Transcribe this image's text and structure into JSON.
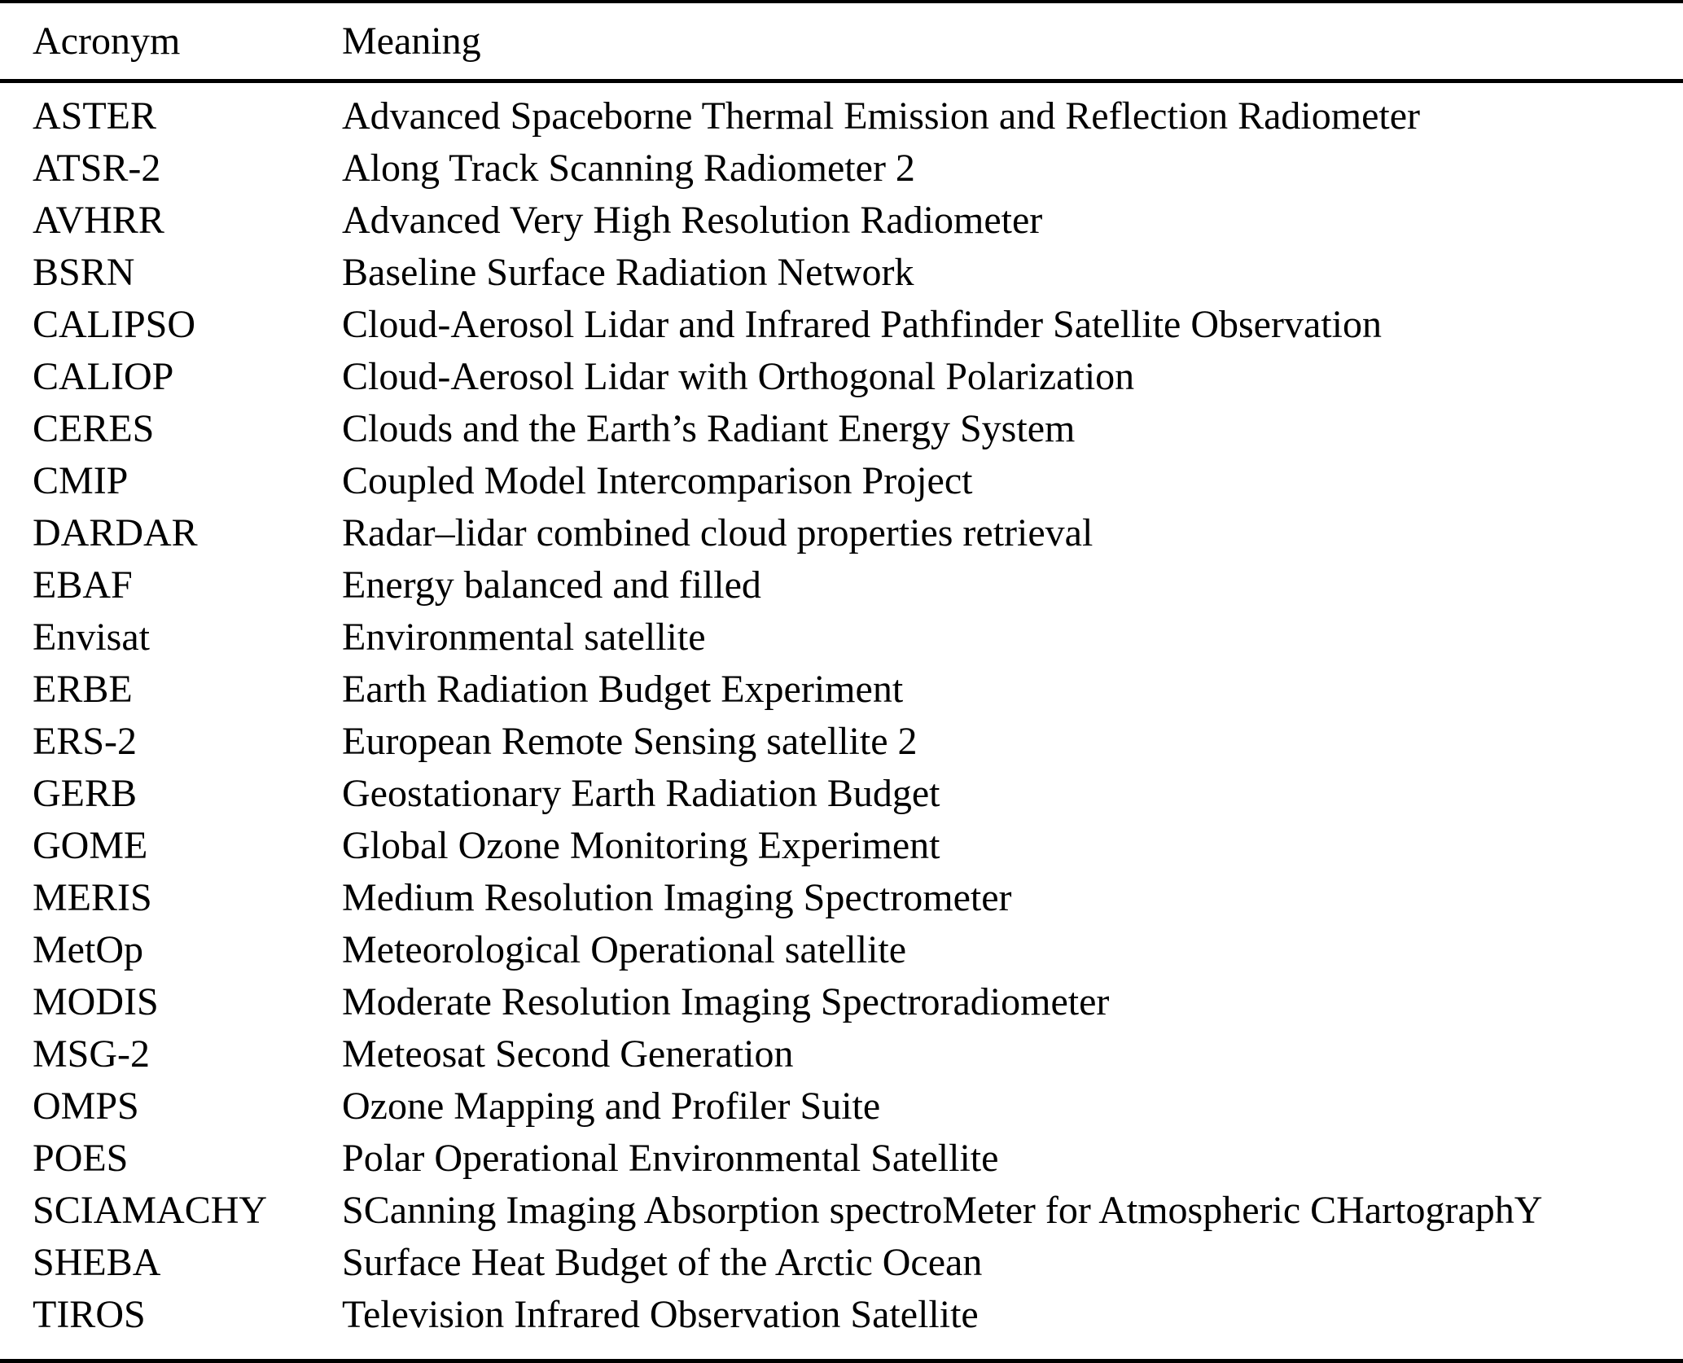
{
  "table": {
    "columns": [
      {
        "label": "Acronym"
      },
      {
        "label": "Meaning"
      }
    ],
    "rows": [
      {
        "acronym": "ASTER",
        "meaning": "Advanced Spaceborne Thermal Emission and Reflection Radiometer"
      },
      {
        "acronym": "ATSR-2",
        "meaning": "Along Track Scanning Radiometer 2"
      },
      {
        "acronym": "AVHRR",
        "meaning": "Advanced Very High Resolution Radiometer"
      },
      {
        "acronym": "BSRN",
        "meaning": "Baseline Surface Radiation Network"
      },
      {
        "acronym": "CALIPSO",
        "meaning": "Cloud-Aerosol Lidar and Infrared Pathfinder Satellite Observation"
      },
      {
        "acronym": "CALIOP",
        "meaning": "Cloud-Aerosol Lidar with Orthogonal Polarization"
      },
      {
        "acronym": "CERES",
        "meaning": "Clouds and the Earth’s Radiant Energy System"
      },
      {
        "acronym": "CMIP",
        "meaning": "Coupled Model Intercomparison Project"
      },
      {
        "acronym": "DARDAR",
        "meaning": "Radar–lidar combined cloud properties retrieval"
      },
      {
        "acronym": "EBAF",
        "meaning": "Energy balanced and filled"
      },
      {
        "acronym": "Envisat",
        "meaning": "Environmental satellite"
      },
      {
        "acronym": "ERBE",
        "meaning": "Earth Radiation Budget Experiment"
      },
      {
        "acronym": "ERS-2",
        "meaning": "European Remote Sensing satellite 2"
      },
      {
        "acronym": "GERB",
        "meaning": "Geostationary Earth Radiation Budget"
      },
      {
        "acronym": "GOME",
        "meaning": "Global Ozone Monitoring Experiment"
      },
      {
        "acronym": "MERIS",
        "meaning": "Medium Resolution Imaging Spectrometer"
      },
      {
        "acronym": "MetOp",
        "meaning": "Meteorological Operational satellite"
      },
      {
        "acronym": "MODIS",
        "meaning": "Moderate Resolution Imaging Spectroradiometer"
      },
      {
        "acronym": "MSG-2",
        "meaning": "Meteosat Second Generation"
      },
      {
        "acronym": "OMPS",
        "meaning": "Ozone Mapping and Profiler Suite"
      },
      {
        "acronym": "POES",
        "meaning": "Polar Operational Environmental Satellite"
      },
      {
        "acronym": "SCIAMACHY",
        "meaning": "SCanning Imaging Absorption spectroMeter for Atmospheric CHartographY"
      },
      {
        "acronym": "SHEBA",
        "meaning": "Surface Heat Budget of the Arctic Ocean"
      },
      {
        "acronym": "TIROS",
        "meaning": "Television Infrared Observation Satellite"
      }
    ]
  }
}
